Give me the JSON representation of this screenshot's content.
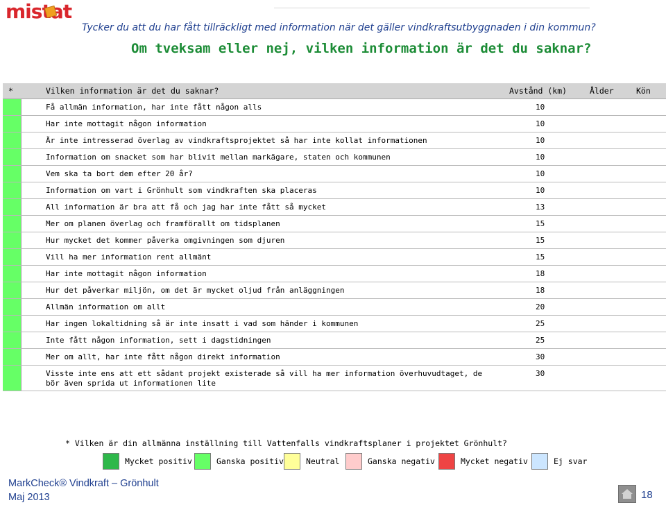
{
  "logo": {
    "text": "mistat",
    "mark_color": "#f0a020"
  },
  "header": {
    "question": "Tycker du att du har fått tillräckligt med information när det gäller vindkraftsutbyggnaden i din kommun?",
    "subquestion": "Om tveksam eller nej, vilken information är det du saknar?"
  },
  "table": {
    "columns": {
      "star": "*",
      "question": "Vilken information är det du saknar?",
      "distance": "Avstånd (km)",
      "age": "Ålder",
      "gender": "Kön"
    },
    "swatch_color": "#66ff66",
    "rows": [
      {
        "text": "Få allmän information, har inte fått någon alls",
        "distance": "10"
      },
      {
        "text": "Har inte mottagit någon information",
        "distance": "10"
      },
      {
        "text": "Är inte intresserad överlag av vindkraftsprojektet så har inte kollat informationen",
        "distance": "10"
      },
      {
        "text": "Information om snacket som har blivit mellan markägare, staten och kommunen",
        "distance": "10"
      },
      {
        "text": "Vem ska ta bort dem efter 20 år?",
        "distance": "10"
      },
      {
        "text": "Information om vart i Grönhult som vindkraften ska placeras",
        "distance": "10"
      },
      {
        "text": "All information är bra att få och jag har inte fått så mycket",
        "distance": "13"
      },
      {
        "text": "Mer om planen överlag och framförallt om tidsplanen",
        "distance": "15"
      },
      {
        "text": "Hur mycket det kommer påverka omgivningen som djuren",
        "distance": "15"
      },
      {
        "text": "Vill ha mer information rent allmänt",
        "distance": "15"
      },
      {
        "text": "Har inte mottagit någon information",
        "distance": "18"
      },
      {
        "text": "Hur det påverkar miljön, om det är mycket oljud från anläggningen",
        "distance": "18"
      },
      {
        "text": "Allmän information om allt",
        "distance": "20"
      },
      {
        "text": "Har ingen lokaltidning så är inte insatt i vad som händer i kommunen",
        "distance": "25"
      },
      {
        "text": "Inte fått någon information, sett i dagstidningen",
        "distance": "25"
      },
      {
        "text": "Mer om allt, har inte fått någon direkt information",
        "distance": "30"
      },
      {
        "text": "Visste inte ens att ett sådant projekt existerade så vill ha mer information överhuvudtaget, de bör även sprida ut informationen lite",
        "distance": "30"
      }
    ]
  },
  "footnote": "* Vilken är din allmänna inställning till Vattenfalls vindkraftsplaner i projektet Grönhult?",
  "legend": [
    {
      "label": "Mycket positiv",
      "color": "#2eb84a"
    },
    {
      "label": "Ganska positiv",
      "color": "#66ff66"
    },
    {
      "label": "Neutral",
      "color": "#ffff99"
    },
    {
      "label": "Ganska negativ",
      "color": "#ffcccc"
    },
    {
      "label": "Mycket negativ",
      "color": "#ee4444"
    },
    {
      "label": "Ej svar",
      "color": "#cce6ff"
    }
  ],
  "footer": {
    "brand": "MarkCheck® Vindkraft – Grönhult",
    "date": "Maj 2013",
    "page": "18"
  }
}
